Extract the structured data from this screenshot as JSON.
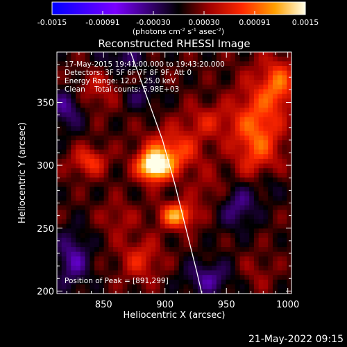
{
  "chart_data": {
    "type": "heatmap",
    "title": "Reconstructed RHESSI Image",
    "xlabel": "Heliocentric X (arcsec)",
    "ylabel": "Heliocentric Y (arcsec)",
    "xlim": [
      812,
      1003
    ],
    "ylim": [
      198,
      390
    ],
    "xticks": [
      850,
      900,
      950,
      1000
    ],
    "yticks": [
      200,
      250,
      300,
      350
    ],
    "colorbar": {
      "min": -0.0015,
      "max": 0.0015,
      "ticks": [
        "-0.0015",
        "-0.00091",
        "-0.00030",
        "0.00030",
        "0.00091",
        "0.0015"
      ],
      "label_pre": "(photons cm",
      "label_exp1": "-2",
      "label_mid1": " s",
      "label_exp2": "-1",
      "label_mid2": " asec",
      "label_exp3": "-2",
      "label_post": ")"
    },
    "annotations": [
      "17-May-2015 19:41:00.000 to 19:43:20.000",
      "Detectors: 3F 5F 6F 7F 8F 9F, Att 0",
      "Energy Range: 12.0 - 25.0 keV",
      "Clean    Total counts: 5.98E+03"
    ],
    "peak_text": "Position of Peak = [891,299]",
    "peak": [
      891,
      299
    ],
    "sources": [
      {
        "x": 891,
        "y": 299,
        "amp": 0.00145,
        "sx": 9,
        "sy": 8
      },
      {
        "x": 910,
        "y": 260,
        "amp": 0.00105,
        "sx": 10,
        "sy": 7
      },
      {
        "x": 905,
        "y": 310,
        "amp": 0.00075,
        "sx": 16,
        "sy": 12
      },
      {
        "x": 838,
        "y": 303,
        "amp": 0.00062,
        "sx": 10,
        "sy": 8
      },
      {
        "x": 975,
        "y": 325,
        "amp": 0.0008,
        "sx": 14,
        "sy": 28
      },
      {
        "x": 993,
        "y": 365,
        "amp": 0.0007,
        "sx": 10,
        "sy": 14
      },
      {
        "x": 935,
        "y": 335,
        "amp": 0.0004,
        "sx": 15,
        "sy": 10
      },
      {
        "x": 845,
        "y": 360,
        "amp": 0.00035,
        "sx": 14,
        "sy": 12
      },
      {
        "x": 880,
        "y": 225,
        "amp": 0.00048,
        "sx": 12,
        "sy": 12
      },
      {
        "x": 862,
        "y": 258,
        "amp": 0.00028,
        "sx": 10,
        "sy": 10
      },
      {
        "x": 940,
        "y": 280,
        "amp": 0.0003,
        "sx": 12,
        "sy": 10
      },
      {
        "x": 975,
        "y": 215,
        "amp": 0.0002,
        "sx": 10,
        "sy": 10
      },
      {
        "x": 935,
        "y": 210,
        "amp": -0.00055,
        "sx": 14,
        "sy": 10
      },
      {
        "x": 960,
        "y": 270,
        "amp": -0.0006,
        "sx": 12,
        "sy": 14
      },
      {
        "x": 820,
        "y": 345,
        "amp": -0.00055,
        "sx": 10,
        "sy": 12
      },
      {
        "x": 825,
        "y": 225,
        "amp": -0.0006,
        "sx": 10,
        "sy": 16
      },
      {
        "x": 865,
        "y": 385,
        "amp": -0.0004,
        "sx": 14,
        "sy": 8
      },
      {
        "x": 985,
        "y": 285,
        "amp": -0.00035,
        "sx": 8,
        "sy": 10
      },
      {
        "x": 880,
        "y": 355,
        "amp": -0.00035,
        "sx": 12,
        "sy": 8
      }
    ],
    "limb": [
      [
        872,
        390
      ],
      [
        885,
        355
      ],
      [
        898,
        320
      ],
      [
        908,
        285
      ],
      [
        917,
        250
      ],
      [
        926,
        215
      ],
      [
        930,
        198
      ]
    ]
  },
  "footer": "21-May-2022 09:15"
}
